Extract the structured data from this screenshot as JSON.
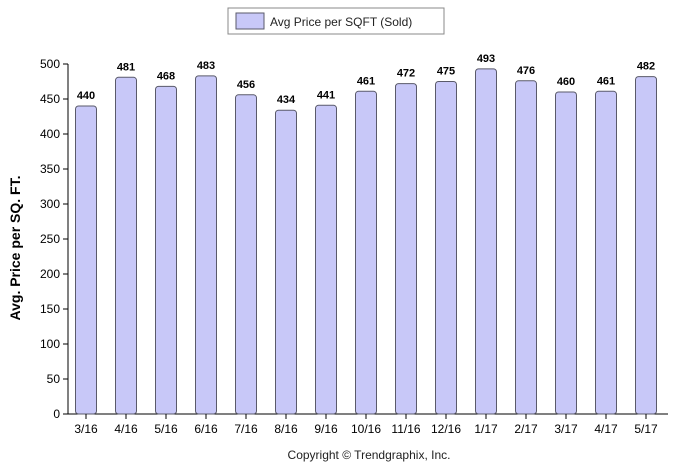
{
  "legend": {
    "label": "Avg Price per SQFT (Sold)"
  },
  "footer": {
    "copyright": "Copyright © Trendgraphix, Inc."
  },
  "colors": {
    "bar_fill": "#c8c8f8",
    "bar_stroke": "#5a5a6a",
    "axis": "#000000",
    "background": "#ffffff"
  },
  "chart_data": {
    "type": "bar",
    "title": "",
    "xlabel": "",
    "ylabel": "Avg. Price per SQ. FT.",
    "ylim": [
      0,
      500
    ],
    "yticks": [
      0,
      50,
      100,
      150,
      200,
      250,
      300,
      350,
      400,
      450,
      500
    ],
    "grid": false,
    "legend_position": "top-center",
    "categories": [
      "3/16",
      "4/16",
      "5/16",
      "6/16",
      "7/16",
      "8/16",
      "9/16",
      "10/16",
      "11/16",
      "12/16",
      "1/17",
      "2/17",
      "3/17",
      "4/17",
      "5/17"
    ],
    "series": [
      {
        "name": "Avg Price per SQFT (Sold)",
        "values": [
          440,
          481,
          468,
          483,
          456,
          434,
          441,
          461,
          472,
          475,
          493,
          476,
          460,
          461,
          482
        ]
      }
    ]
  }
}
